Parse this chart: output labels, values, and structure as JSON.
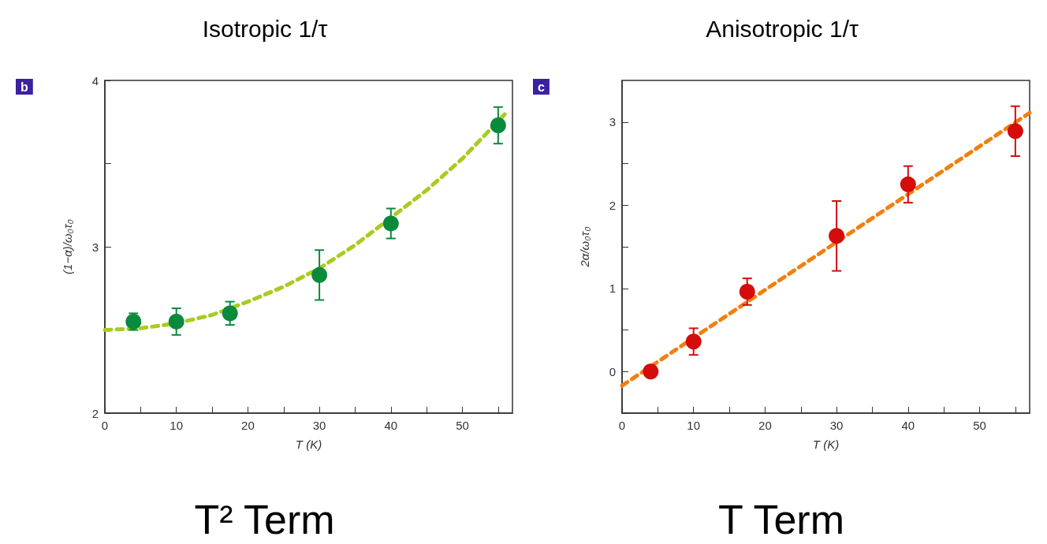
{
  "chart_data": [
    {
      "type": "scatter",
      "title": "Isotropic 1/τ",
      "xlabel": "T (K)",
      "ylabel": "(1−α)/ω₀τ₀",
      "annotations": [
        "b",
        "T² Term"
      ],
      "xlim": [
        0,
        57
      ],
      "xticks": [
        0,
        {
          "value": 5,
          "label": null
        },
        10,
        {
          "value": 15,
          "label": null
        },
        20,
        {
          "value": 25,
          "label": null
        },
        30,
        {
          "value": 35,
          "label": null
        },
        40,
        {
          "value": 45,
          "label": null
        },
        50,
        {
          "value": 55,
          "label": null
        }
      ],
      "ylim": [
        2,
        4
      ],
      "yticks": [
        2,
        {
          "value": 2.5,
          "label": null
        },
        3,
        {
          "value": 3.5,
          "label": null
        },
        4
      ],
      "grid": false,
      "series": [
        {
          "type": "line",
          "color": "#a8cc1e",
          "line_style": "dashed",
          "marker": "none",
          "x": [
            0,
            5,
            10,
            15,
            20,
            25,
            30,
            35,
            45,
            50,
            56
          ],
          "values": [
            2.5,
            2.51,
            2.54,
            2.59,
            2.67,
            2.76,
            2.87,
            3.01,
            3.34,
            3.53,
            3.8
          ]
        },
        {
          "color": "#0a8a3c",
          "marker": "circle",
          "x": [
            4,
            10,
            17.5,
            30,
            40,
            55
          ],
          "values": [
            2.55,
            2.55,
            2.6,
            2.83,
            3.14,
            3.73
          ],
          "errors": [
            0.05,
            0.08,
            0.07,
            0.15,
            0.09,
            0.11
          ]
        }
      ]
    },
    {
      "type": "scatter",
      "title": "Anisotropic 1/τ",
      "xlabel": "T (K)",
      "ylabel": "2α/ω₀τ₀",
      "annotations": [
        "c",
        "T Term"
      ],
      "xlim": [
        0,
        57
      ],
      "xticks": [
        0,
        {
          "value": 5,
          "label": null
        },
        10,
        {
          "value": 15,
          "label": null
        },
        20,
        {
          "value": 25,
          "label": null
        },
        30,
        {
          "value": 35,
          "label": null
        },
        40,
        {
          "value": 45,
          "label": null
        },
        50,
        {
          "value": 55,
          "label": null
        }
      ],
      "ylim": [
        -0.5,
        3.5
      ],
      "yticks": [
        {
          "value": -0.5,
          "label": null
        },
        0,
        {
          "value": 0.5,
          "label": null
        },
        1,
        {
          "value": 1.5,
          "label": null
        },
        2,
        {
          "value": 2.5,
          "label": null
        },
        3
      ],
      "grid": false,
      "series": [
        {
          "type": "line",
          "color": "#f08010",
          "line_style": "dashed",
          "marker": "none",
          "x": [
            0,
            57
          ],
          "values": [
            -0.17,
            3.11
          ]
        },
        {
          "color": "#d40c0c",
          "marker": "circle",
          "x": [
            4,
            10,
            17.5,
            30,
            40,
            55
          ],
          "values": [
            0,
            0.36,
            0.96,
            1.63,
            2.25,
            2.89
          ],
          "errors": [
            null,
            0.16,
            0.16,
            0.42,
            0.22,
            0.3
          ]
        }
      ]
    }
  ]
}
